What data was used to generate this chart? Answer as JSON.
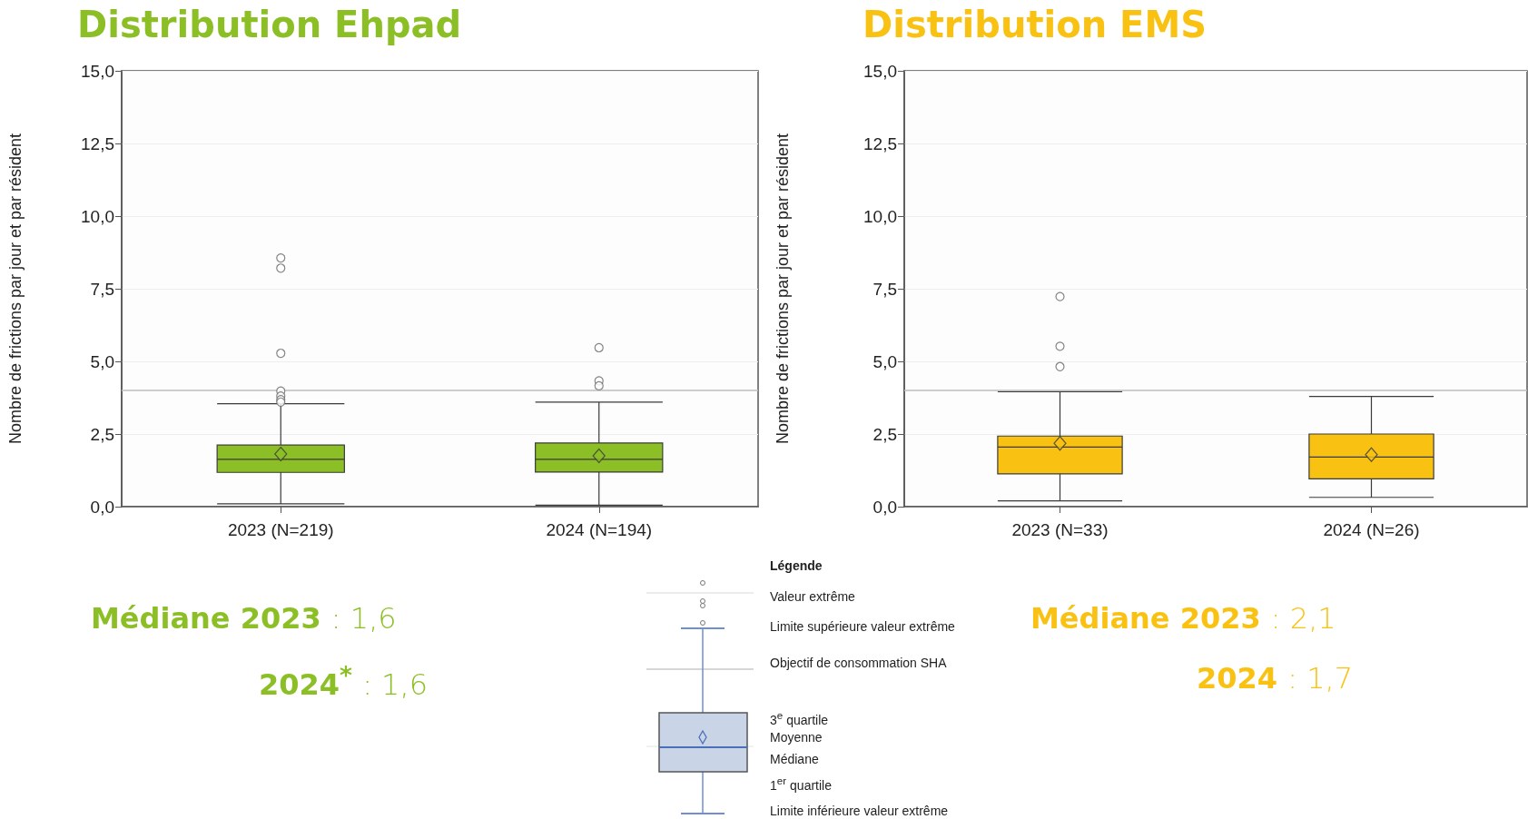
{
  "chart_data": [
    {
      "type": "box",
      "title": "Distribution Ehpad",
      "ylabel": "Nombre de frictions par jour et par résident",
      "categories": [
        "2023 (N=219)",
        "2024 (N=194)"
      ],
      "series": [
        {
          "color": "#8cbf26",
          "boxes": [
            {
              "low": 0.1,
              "q1": 1.18,
              "median": 1.63,
              "q3": 2.12,
              "high": 3.54,
              "mean": 1.81,
              "outliers": [
                8.56,
                8.21,
                5.28,
                3.98,
                3.81,
                3.68,
                3.6
              ]
            },
            {
              "low": 0.05,
              "q1": 1.19,
              "median": 1.63,
              "q3": 2.19,
              "high": 3.6,
              "mean": 1.75,
              "outliers": [
                5.47,
                4.33,
                4.16
              ]
            }
          ]
        }
      ],
      "ylim": [
        0,
        15
      ],
      "yticks": [
        {
          "value": 0,
          "label": "0,0"
        },
        {
          "value": 2.5,
          "label": "2,5"
        },
        {
          "value": 5,
          "label": "5,0"
        },
        {
          "value": 7.5,
          "label": "7,5"
        },
        {
          "value": 10,
          "label": "10,0"
        },
        {
          "value": 12.5,
          "label": "12,5"
        },
        {
          "value": 15,
          "label": "15,0"
        }
      ],
      "grid": "y",
      "ref_lines": [
        {
          "axis": "y",
          "value": 4,
          "color": "#bdbdbd"
        }
      ],
      "annotations": [
        "Médiane  2023 : 1,6",
        "2024$^{*}$ : 1,6"
      ]
    },
    {
      "type": "box",
      "title": "Distribution EMS",
      "ylabel": "Nombre de frictions par jour et par résident",
      "categories": [
        "2023 (N=33)",
        "2024 (N=26)"
      ],
      "series": [
        {
          "color": "#f9c213",
          "boxes": [
            {
              "low": 0.2,
              "q1": 1.13,
              "median": 2.05,
              "q3": 2.43,
              "high": 3.96,
              "mean": 2.18,
              "outliers": [
                7.23,
                5.52,
                4.82
              ]
            },
            {
              "low": 0.32,
              "q1": 0.96,
              "median": 1.71,
              "q3": 2.5,
              "high": 3.79,
              "mean": 1.79
            }
          ]
        }
      ],
      "ylim": [
        0,
        15
      ],
      "yticks": [
        {
          "value": 0,
          "label": "0,0"
        },
        {
          "value": 2.5,
          "label": "2,5"
        },
        {
          "value": 5,
          "label": "5,0"
        },
        {
          "value": 7.5,
          "label": "7,5"
        },
        {
          "value": 10,
          "label": "10,0"
        },
        {
          "value": 12.5,
          "label": "12,5"
        },
        {
          "value": 15,
          "label": "15,0"
        }
      ],
      "grid": "y",
      "ref_lines": [
        {
          "axis": "y",
          "value": 4,
          "color": "#bdbdbd"
        }
      ],
      "annotations": [
        "Médiane  2023 : 2,1",
        "2024 : 1,7"
      ]
    },
    {
      "type": "other",
      "title": "Légende",
      "annotations": [
        "Valeur extrême",
        "Limite supérieure valeur extrême",
        "Objectif de consommation SHA",
        "3$^{e}$ quartile",
        "Moyenne",
        "Médiane",
        "1$^{er}$ quartile",
        "Limite inférieure valeur extrême"
      ]
    }
  ]
}
